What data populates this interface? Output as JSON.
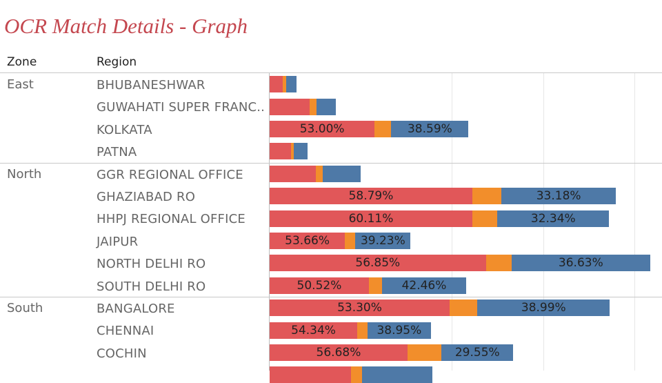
{
  "title": "OCR Match Details - Graph",
  "colors": {
    "series_1": "#e15759",
    "series_2": "#f28e2b",
    "series_3": "#4e79a7",
    "title": "#c4474f"
  },
  "chart_data": {
    "type": "bar",
    "orientation": "horizontal",
    "stacked": true,
    "title": "OCR Match Details - Graph",
    "column_headers": [
      "Zone",
      "Region"
    ],
    "xlim": [
      0,
      100
    ],
    "grid": true,
    "zones": [
      {
        "name": "East",
        "rows": [
          {
            "region": "BHUBANESHWAR",
            "values": [
              3.4,
              0.8,
              2.7
            ],
            "labels": [
              "",
              "",
              ""
            ]
          },
          {
            "region": "GUWAHATI SUPER FRANC..",
            "values": [
              10.4,
              1.8,
              5.0
            ],
            "labels": [
              "",
              "",
              ""
            ]
          },
          {
            "region": "KOLKATA",
            "values": [
              27.2,
              4.3,
              20.0
            ],
            "labels": [
              "53.00%",
              "",
              "38.59%"
            ]
          },
          {
            "region": "PATNA",
            "values": [
              5.6,
              0.7,
              3.6
            ],
            "labels": [
              "",
              "",
              ""
            ]
          }
        ]
      },
      {
        "name": "North",
        "rows": [
          {
            "region": "GGR REGIONAL OFFICE",
            "values": [
              12.0,
              1.8,
              9.7
            ],
            "labels": [
              "",
              "",
              ""
            ]
          },
          {
            "region": "GHAZIABAD RO",
            "values": [
              52.5,
              7.5,
              29.7
            ],
            "labels": [
              "58.79%",
              "",
              "33.18%"
            ]
          },
          {
            "region": "HHPJ REGIONAL OFFICE",
            "values": [
              52.5,
              6.5,
              28.9
            ],
            "labels": [
              "60.11%",
              "",
              "32.34%"
            ]
          },
          {
            "region": "JAIPUR",
            "values": [
              19.5,
              2.7,
              14.3
            ],
            "labels": [
              "53.66%",
              "",
              "39.23%"
            ]
          },
          {
            "region": "NORTH DELHI RO",
            "values": [
              56.0,
              6.6,
              36.0
            ],
            "labels": [
              "56.85%",
              "",
              "36.63%"
            ]
          },
          {
            "region": "SOUTH DELHI RO",
            "values": [
              25.7,
              3.4,
              21.8
            ],
            "labels": [
              "50.52%",
              "",
              "42.46%"
            ]
          }
        ]
      },
      {
        "name": "South",
        "rows": [
          {
            "region": "BANGALORE",
            "values": [
              46.6,
              7.2,
              34.3
            ],
            "labels": [
              "53.30%",
              "",
              "38.99%"
            ]
          },
          {
            "region": "CHENNAI",
            "values": [
              22.7,
              2.7,
              16.3
            ],
            "labels": [
              "54.34%",
              "",
              "38.95%"
            ]
          },
          {
            "region": "COCHIN",
            "values": [
              35.7,
              8.8,
              18.6
            ],
            "labels": [
              "56.68%",
              "",
              "29.55%"
            ]
          },
          {
            "region": "",
            "values": [
              21.0,
              2.9,
              18.2
            ],
            "labels": [
              "",
              "",
              ""
            ]
          }
        ]
      }
    ]
  }
}
